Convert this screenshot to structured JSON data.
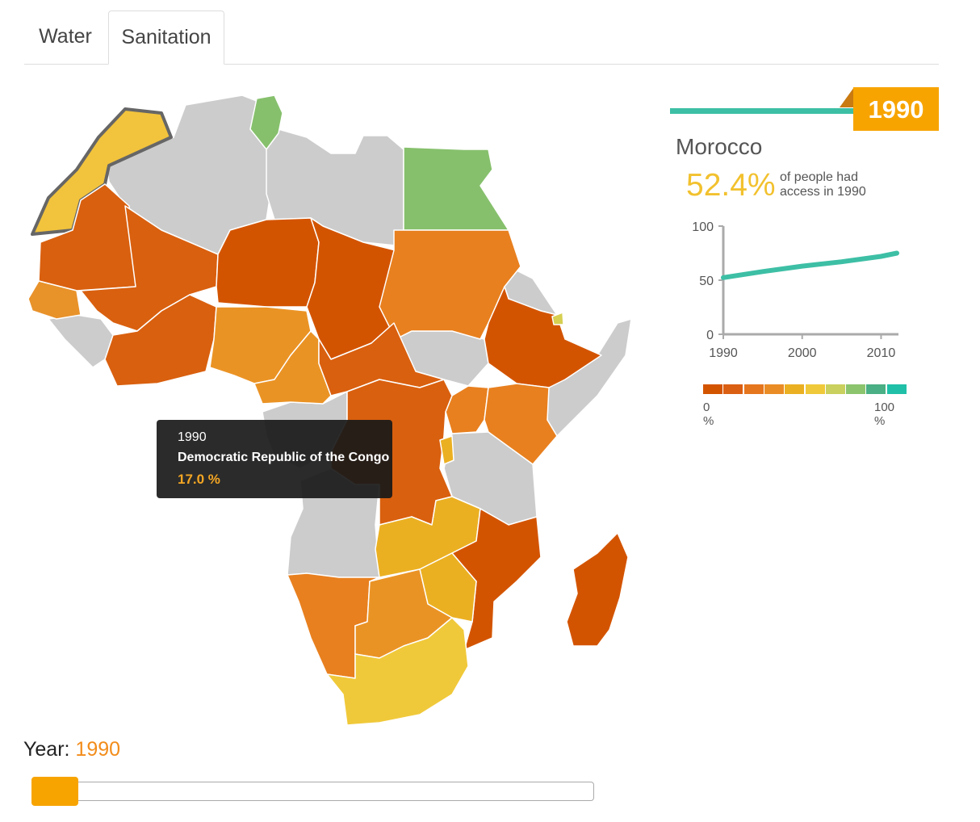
{
  "tabs": [
    {
      "label": "Water",
      "active": false
    },
    {
      "label": "Sanitation",
      "active": true
    }
  ],
  "tooltip": {
    "year": "1990",
    "country": "Democratic Republic of the Congo",
    "value": "17.0 %"
  },
  "panel": {
    "year": "1990",
    "country": "Morocco",
    "percent": "52.4%",
    "description": "of people had access in 1990"
  },
  "chart_data": {
    "type": "line",
    "x": [
      1990,
      1995,
      2000,
      2005,
      2010,
      2012
    ],
    "series": [
      {
        "values": [
          52.4,
          58,
          63,
          67,
          72,
          75
        ]
      }
    ],
    "xticks": [
      "1990",
      "2000",
      "2010"
    ],
    "yticks": [
      "0",
      "50",
      "100"
    ],
    "ylim": [
      0,
      100
    ],
    "xlim": [
      1990,
      2012
    ]
  },
  "legend": {
    "min_label": "0 %",
    "max_label": "100 %",
    "colors": [
      "#d35400",
      "#da5f12",
      "#e5761e",
      "#ea8c25",
      "#ebb022",
      "#f0c93a",
      "#c9d05d",
      "#8cc46e",
      "#4aaf84",
      "#20c0a8"
    ]
  },
  "year_control": {
    "label": "Year:",
    "value": "1990",
    "slider_fraction": 0
  },
  "map_colors": {
    "no_data": "#cccccc",
    "morocco": "#f2c33c",
    "tunisia": "#86c06c",
    "egypt": "#86c06c",
    "sudan": "#e8801f",
    "chad": "#d35400",
    "niger": "#d35400",
    "mali": "#d9600f",
    "mauritania": "#d9600f",
    "senegal": "#e8922a",
    "nigeria": "#ea9325",
    "cameroon": "#ea9325",
    "car": "#d9600f",
    "drc": "#d9600f",
    "ethiopia": "#d35400",
    "kenya": "#e8801f",
    "uganda": "#e8801f",
    "zambia": "#ebb022",
    "zimbabwe": "#ebb022",
    "botswana": "#ea9325",
    "namibia": "#e8801f",
    "south_africa": "#f0c93a",
    "mozambique": "#d35400",
    "madagascar": "#d35400",
    "angola": "#cccccc",
    "tanzania": "#cccccc",
    "djibouti": "#d6cf50"
  }
}
